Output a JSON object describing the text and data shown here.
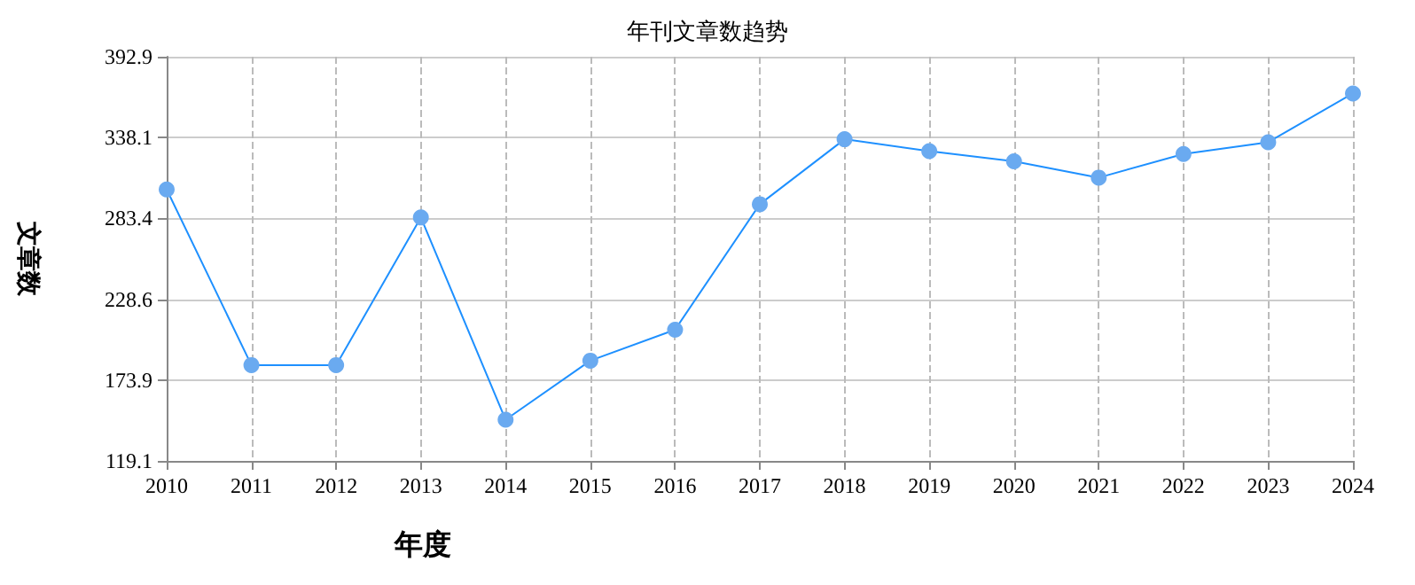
{
  "chart_data": {
    "type": "line",
    "title": "年刊文章数趋势",
    "xlabel": "年度",
    "ylabel": "文章数",
    "categories": [
      "2010",
      "2011",
      "2012",
      "2013",
      "2014",
      "2015",
      "2016",
      "2017",
      "2018",
      "2019",
      "2020",
      "2021",
      "2022",
      "2023",
      "2024"
    ],
    "series": [
      {
        "color": "#1e90ff",
        "values": [
          303,
          184,
          184,
          284,
          147,
          187,
          208,
          293,
          337,
          329,
          322,
          311,
          327,
          335,
          368
        ]
      }
    ],
    "ylim": [
      119.1,
      392.9
    ],
    "yticks": [
      119.1,
      173.9,
      228.6,
      283.4,
      338.1,
      392.9
    ],
    "grid": true,
    "marker": "circle",
    "line_style": "solid"
  }
}
